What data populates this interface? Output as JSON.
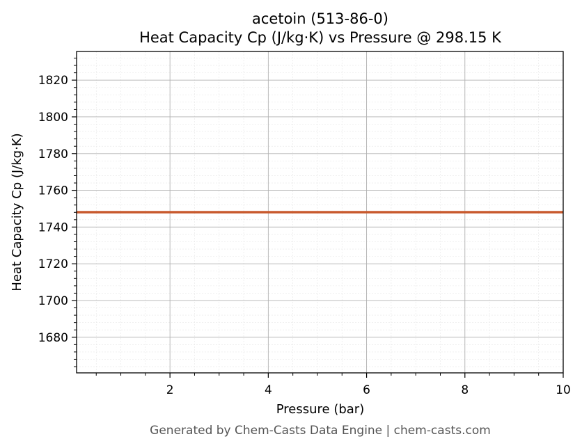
{
  "chart_data": {
    "type": "line",
    "title": "acetoin (513-86-0)",
    "subtitle": "Heat Capacity Cp (J/kg·K) vs Pressure @ 298.15 K",
    "xlabel": "Pressure (bar)",
    "ylabel": "Heat Capacity Cp (J/kg·K)",
    "xlim": [
      0.1,
      10
    ],
    "ylim": [
      1660.6,
      1835.6
    ],
    "xticks": [
      2,
      4,
      6,
      8,
      10
    ],
    "xtick_labels": [
      "2",
      "4",
      "6",
      "8",
      "10"
    ],
    "yticks": [
      1680,
      1700,
      1720,
      1740,
      1760,
      1780,
      1800,
      1820
    ],
    "ytick_labels": [
      "1680",
      "1700",
      "1720",
      "1740",
      "1760",
      "1780",
      "1800",
      "1820"
    ],
    "grid": true,
    "series": [
      {
        "x": [
          0.1,
          10
        ],
        "y": [
          1748.1,
          1748.1
        ],
        "color": "#c85a2e"
      }
    ]
  },
  "footer": "Generated by Chem-Casts Data Engine | chem-casts.com"
}
